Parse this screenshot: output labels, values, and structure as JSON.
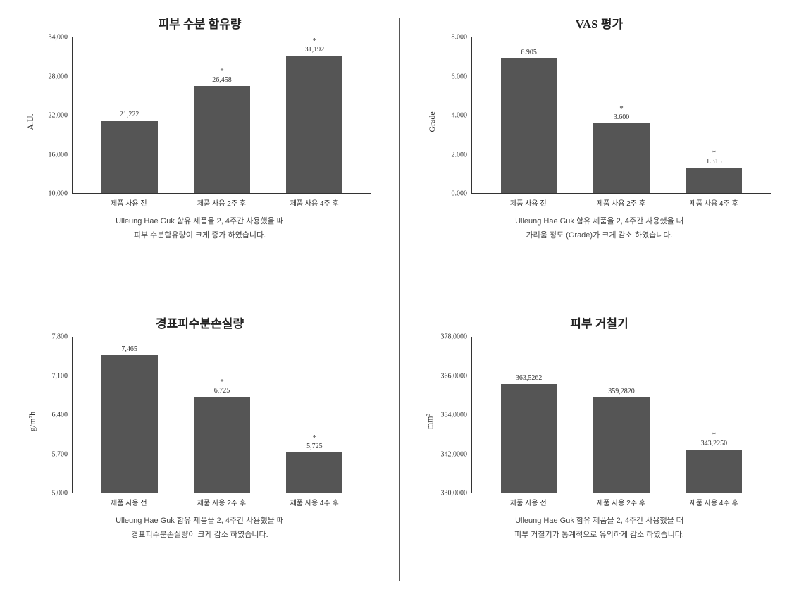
{
  "layout": {
    "bar_color": "#555555",
    "axis_color": "#333333",
    "background": "#ffffff",
    "font_family": "Times New Roman, Malgun Gothic, sans-serif"
  },
  "charts": [
    {
      "title": "피부 수분 함유량",
      "y_axis_label": "A.U.",
      "ymin": 10000,
      "ymax": 34000,
      "yticks": [
        10000,
        16000,
        22000,
        28000,
        34000
      ],
      "ytick_labels": [
        "10,000",
        "16,000",
        "22,000",
        "28,000",
        "34,000"
      ],
      "categories": [
        "제품 사용 전",
        "제품 사용 2주 후",
        "제품 사용 4주 후"
      ],
      "values": [
        21222,
        26458,
        31192
      ],
      "value_labels": [
        "21,222",
        "26,458",
        "31,192"
      ],
      "stars": [
        "",
        "*",
        "*"
      ],
      "caption_line1": "Ulleung Hae Guk 함유 제품을 2, 4주간 사용했을 때",
      "caption_line2": "피부 수분함유량이 크게 증가 하였습니다."
    },
    {
      "title": "VAS 평가",
      "y_axis_label": "Grade",
      "ymin": 0,
      "ymax": 8,
      "yticks": [
        0,
        2,
        4,
        6,
        8
      ],
      "ytick_labels": [
        "0.000",
        "2.000",
        "4.000",
        "6.000",
        "8.000"
      ],
      "categories": [
        "제품 사용 전",
        "제품 사용 2주 후",
        "제품 사용 4주 후"
      ],
      "values": [
        6.905,
        3.6,
        1.315
      ],
      "value_labels": [
        "6.905",
        "3.600",
        "1.315"
      ],
      "stars": [
        "",
        "*",
        "*"
      ],
      "caption_line1": "Ulleung Hae Guk 함유 제품을 2, 4주간 사용했을 때",
      "caption_line2": "가려움 정도 (Grade)가 크게 감소 하였습니다."
    },
    {
      "title": "경표피수분손실량",
      "y_axis_label": "g/m²h",
      "ymin": 5000,
      "ymax": 7800,
      "yticks": [
        5000,
        5700,
        6400,
        7100,
        7800
      ],
      "ytick_labels": [
        "5,000",
        "5,700",
        "6,400",
        "7,100",
        "7,800"
      ],
      "categories": [
        "제품 사용 전",
        "제품 사용 2주 후",
        "제품 사용 4주 후"
      ],
      "values": [
        7465,
        6725,
        5725
      ],
      "value_labels": [
        "7,465",
        "6,725",
        "5,725"
      ],
      "stars": [
        "",
        "*",
        "*"
      ],
      "caption_line1": "Ulleung Hae Guk 함유 제품을 2, 4주간 사용했을 때",
      "caption_line2": "경표피수분손실량이 크게 감소 하였습니다."
    },
    {
      "title": "피부 거칠기",
      "y_axis_label": "mm³",
      "ymin": 330,
      "ymax": 378,
      "yticks": [
        330,
        342,
        354,
        366,
        378
      ],
      "ytick_labels": [
        "330,0000",
        "342,0000",
        "354,0000",
        "366,0000",
        "378,0000"
      ],
      "categories": [
        "제품 사용 전",
        "제품 사용 2주 후",
        "제품 사용 4주 후"
      ],
      "values": [
        363.5262,
        359.282,
        343.225
      ],
      "value_labels": [
        "363,5262",
        "359,2820",
        "343,2250"
      ],
      "stars": [
        "",
        "",
        "*"
      ],
      "caption_line1": "Ulleung Hae Guk 함유 제품을 2, 4주간 사용했을 때",
      "caption_line2": "피부 거칠기가 통계적으로 유의하게 감소 하였습니다."
    }
  ]
}
